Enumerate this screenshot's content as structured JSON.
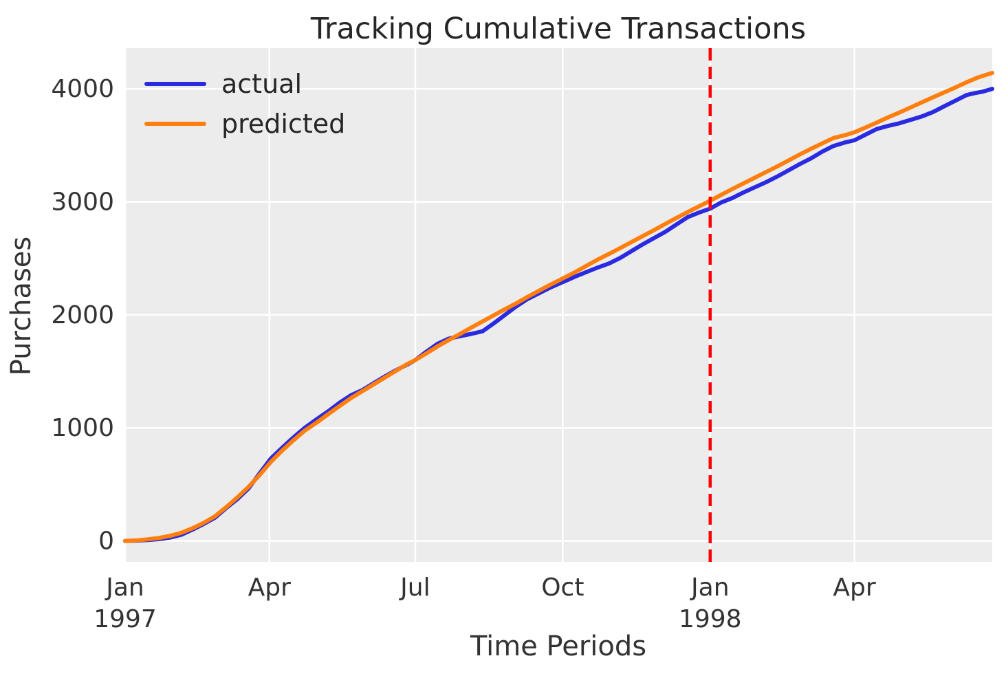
{
  "styles": {
    "plot_bg": "#ececec",
    "grid_color": "#ffffff",
    "text_color": "#333333",
    "actual_color": "#2a2ae0",
    "predicted_color": "#ff7f0e",
    "vline_color": "#ff0000"
  },
  "legend": {
    "items": [
      {
        "label": "actual",
        "color": "#2a2ae0"
      },
      {
        "label": "predicted",
        "color": "#ff7f0e"
      }
    ],
    "position": "upper left"
  },
  "chart_data": {
    "type": "line",
    "title": "Tracking Cumulative Transactions",
    "xlabel": "Time Periods",
    "ylabel": "Purchases",
    "x_unit": "days since 1997-01-01",
    "x_domain_days": [
      0,
      541
    ],
    "y_domain": [
      -185,
      4360
    ],
    "y_ticks": [
      0,
      1000,
      2000,
      3000,
      4000
    ],
    "x_ticks": [
      {
        "day": 0,
        "label": "Jan",
        "sublabel": "1997"
      },
      {
        "day": 90,
        "label": "Apr"
      },
      {
        "day": 181,
        "label": "Jul"
      },
      {
        "day": 273,
        "label": "Oct"
      },
      {
        "day": 365,
        "label": "Jan",
        "sublabel": "1998"
      },
      {
        "day": 455,
        "label": "Apr"
      }
    ],
    "grid": true,
    "vline": {
      "name": "calibration-end",
      "day": 365,
      "color": "#ff0000",
      "dashed": true
    },
    "series": [
      {
        "name": "actual",
        "color": "#2a2ae0",
        "points": [
          [
            0,
            0
          ],
          [
            7,
            3
          ],
          [
            14,
            8
          ],
          [
            21,
            16
          ],
          [
            28,
            30
          ],
          [
            35,
            55
          ],
          [
            42,
            100
          ],
          [
            49,
            150
          ],
          [
            56,
            205
          ],
          [
            63,
            290
          ],
          [
            70,
            370
          ],
          [
            77,
            465
          ],
          [
            84,
            600
          ],
          [
            91,
            730
          ],
          [
            98,
            825
          ],
          [
            105,
            915
          ],
          [
            112,
            1000
          ],
          [
            120,
            1082
          ],
          [
            127,
            1150
          ],
          [
            134,
            1225
          ],
          [
            141,
            1290
          ],
          [
            148,
            1335
          ],
          [
            155,
            1395
          ],
          [
            162,
            1455
          ],
          [
            169,
            1510
          ],
          [
            176,
            1560
          ],
          [
            181,
            1600
          ],
          [
            188,
            1675
          ],
          [
            195,
            1745
          ],
          [
            202,
            1790
          ],
          [
            209,
            1812
          ],
          [
            216,
            1832
          ],
          [
            223,
            1855
          ],
          [
            230,
            1925
          ],
          [
            237,
            2000
          ],
          [
            244,
            2075
          ],
          [
            251,
            2140
          ],
          [
            258,
            2190
          ],
          [
            265,
            2240
          ],
          [
            273,
            2290
          ],
          [
            281,
            2340
          ],
          [
            288,
            2380
          ],
          [
            295,
            2420
          ],
          [
            302,
            2455
          ],
          [
            309,
            2505
          ],
          [
            316,
            2565
          ],
          [
            323,
            2625
          ],
          [
            330,
            2680
          ],
          [
            337,
            2735
          ],
          [
            344,
            2800
          ],
          [
            351,
            2865
          ],
          [
            358,
            2905
          ],
          [
            365,
            2940
          ],
          [
            372,
            2995
          ],
          [
            379,
            3035
          ],
          [
            386,
            3085
          ],
          [
            393,
            3130
          ],
          [
            400,
            3175
          ],
          [
            407,
            3225
          ],
          [
            414,
            3280
          ],
          [
            421,
            3335
          ],
          [
            428,
            3385
          ],
          [
            435,
            3445
          ],
          [
            442,
            3495
          ],
          [
            449,
            3525
          ],
          [
            455,
            3545
          ],
          [
            462,
            3595
          ],
          [
            469,
            3645
          ],
          [
            476,
            3672
          ],
          [
            483,
            3695
          ],
          [
            490,
            3725
          ],
          [
            497,
            3755
          ],
          [
            504,
            3795
          ],
          [
            511,
            3845
          ],
          [
            518,
            3895
          ],
          [
            525,
            3945
          ],
          [
            530,
            3962
          ],
          [
            535,
            3975
          ],
          [
            541,
            4000
          ]
        ]
      },
      {
        "name": "predicted",
        "color": "#ff7f0e",
        "points": [
          [
            0,
            0
          ],
          [
            7,
            5
          ],
          [
            14,
            14
          ],
          [
            21,
            26
          ],
          [
            28,
            45
          ],
          [
            35,
            72
          ],
          [
            42,
            112
          ],
          [
            49,
            160
          ],
          [
            56,
            218
          ],
          [
            63,
            298
          ],
          [
            70,
            385
          ],
          [
            77,
            478
          ],
          [
            84,
            585
          ],
          [
            91,
            700
          ],
          [
            98,
            800
          ],
          [
            105,
            890
          ],
          [
            112,
            975
          ],
          [
            120,
            1052
          ],
          [
            127,
            1125
          ],
          [
            134,
            1195
          ],
          [
            141,
            1265
          ],
          [
            148,
            1325
          ],
          [
            155,
            1385
          ],
          [
            162,
            1445
          ],
          [
            169,
            1505
          ],
          [
            176,
            1565
          ],
          [
            181,
            1600
          ],
          [
            188,
            1660
          ],
          [
            195,
            1722
          ],
          [
            202,
            1778
          ],
          [
            209,
            1832
          ],
          [
            216,
            1888
          ],
          [
            223,
            1942
          ],
          [
            230,
            1996
          ],
          [
            237,
            2050
          ],
          [
            244,
            2102
          ],
          [
            251,
            2158
          ],
          [
            258,
            2212
          ],
          [
            265,
            2265
          ],
          [
            273,
            2322
          ],
          [
            281,
            2380
          ],
          [
            288,
            2436
          ],
          [
            295,
            2490
          ],
          [
            302,
            2540
          ],
          [
            309,
            2592
          ],
          [
            316,
            2645
          ],
          [
            323,
            2698
          ],
          [
            330,
            2750
          ],
          [
            337,
            2805
          ],
          [
            344,
            2858
          ],
          [
            351,
            2910
          ],
          [
            358,
            2960
          ],
          [
            365,
            3010
          ],
          [
            372,
            3063
          ],
          [
            379,
            3115
          ],
          [
            386,
            3165
          ],
          [
            393,
            3215
          ],
          [
            400,
            3265
          ],
          [
            407,
            3315
          ],
          [
            414,
            3367
          ],
          [
            421,
            3420
          ],
          [
            428,
            3470
          ],
          [
            435,
            3518
          ],
          [
            442,
            3565
          ],
          [
            449,
            3590
          ],
          [
            455,
            3615
          ],
          [
            462,
            3658
          ],
          [
            469,
            3702
          ],
          [
            476,
            3748
          ],
          [
            483,
            3790
          ],
          [
            490,
            3835
          ],
          [
            497,
            3880
          ],
          [
            504,
            3925
          ],
          [
            511,
            3968
          ],
          [
            518,
            4012
          ],
          [
            525,
            4058
          ],
          [
            532,
            4100
          ],
          [
            541,
            4141
          ]
        ]
      }
    ]
  }
}
